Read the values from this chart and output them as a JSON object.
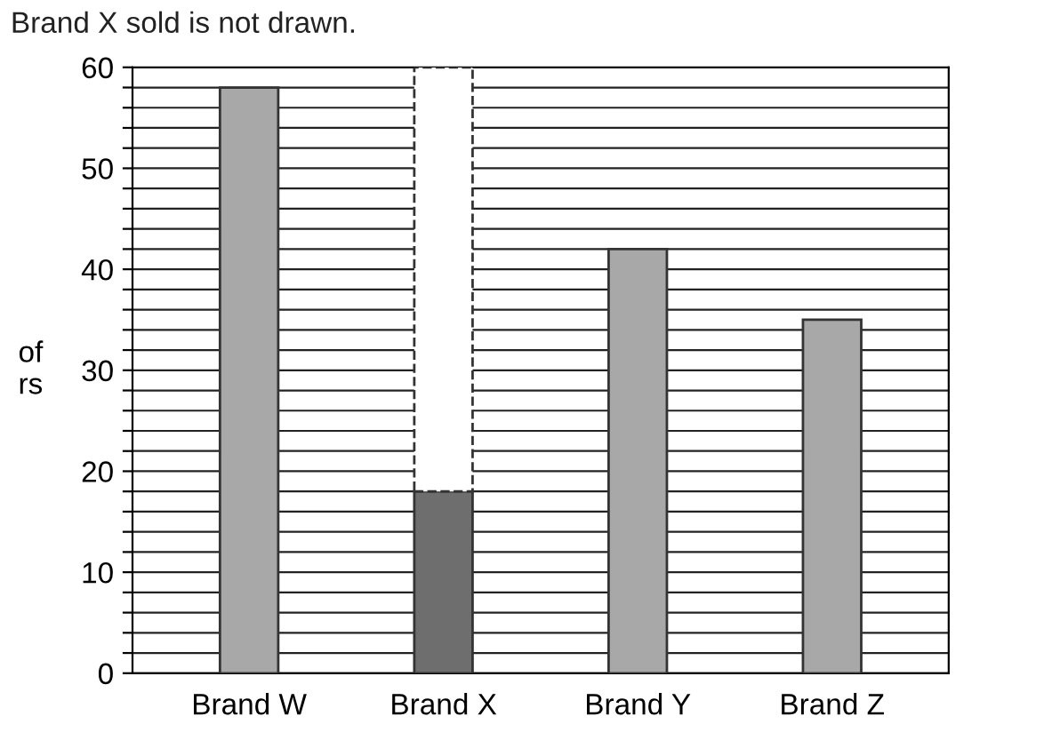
{
  "chart_data": {
    "type": "bar",
    "ylabel": "of\nrs",
    "annotations": [
      "Brand X sold is not drawn."
    ],
    "categories": [
      "Brand W",
      "Brand X",
      "Brand Y",
      "Brand Z"
    ],
    "stacked": true,
    "series": [
      {
        "colors": [
          "#a8a8a8",
          "#6e6e6e",
          "#a8a8a8",
          "#a8a8a8"
        ],
        "values": [
          58,
          18,
          42,
          35
        ]
      },
      {
        "color": "#ffffff",
        "line_style": "dashed",
        "values": [
          null,
          42,
          null,
          null
        ]
      }
    ],
    "ylim": [
      0,
      60
    ],
    "yticks": [
      0,
      {
        "value": 2,
        "label": null
      },
      {
        "value": 4,
        "label": null
      },
      {
        "value": 6,
        "label": null
      },
      {
        "value": 8,
        "label": null
      },
      10,
      {
        "value": 12,
        "label": null
      },
      {
        "value": 14,
        "label": null
      },
      {
        "value": 16,
        "label": null
      },
      {
        "value": 18,
        "label": null
      },
      20,
      {
        "value": 22,
        "label": null
      },
      {
        "value": 24,
        "label": null
      },
      {
        "value": 26,
        "label": null
      },
      {
        "value": 28,
        "label": null
      },
      30,
      {
        "value": 32,
        "label": null
      },
      {
        "value": 34,
        "label": null
      },
      {
        "value": 36,
        "label": null
      },
      {
        "value": 38,
        "label": null
      },
      40,
      {
        "value": 42,
        "label": null
      },
      {
        "value": 44,
        "label": null
      },
      {
        "value": 46,
        "label": null
      },
      {
        "value": 48,
        "label": null
      },
      50,
      {
        "value": 52,
        "label": null
      },
      {
        "value": 54,
        "label": null
      },
      {
        "value": 56,
        "label": null
      },
      {
        "value": 58,
        "label": null
      },
      60
    ],
    "grid": "y"
  }
}
